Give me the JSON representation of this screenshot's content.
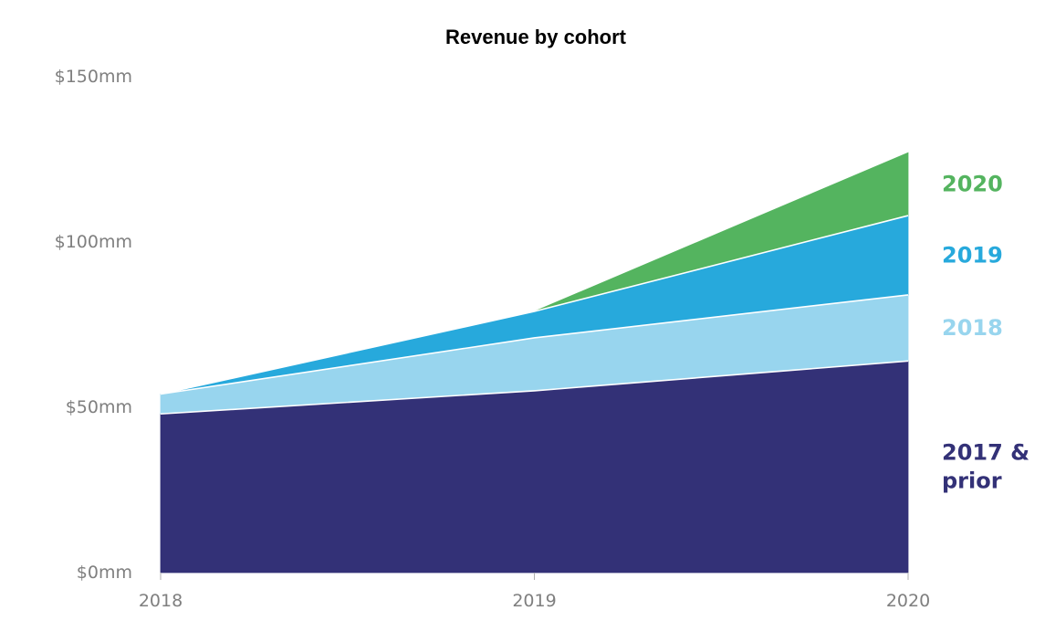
{
  "chart_data": {
    "type": "area",
    "title": "Revenue by cohort",
    "xlabel": "",
    "ylabel": "",
    "x": [
      "2018",
      "2019",
      "2020"
    ],
    "y_ticks": [
      "$0mm",
      "$50mm",
      "$100mm",
      "$150mm"
    ],
    "ylim": [
      0,
      150
    ],
    "stacked": true,
    "grid": false,
    "legend": "right (inline labels at series end)",
    "series": [
      {
        "name": "2017 & prior",
        "label_lines": [
          "2017 &",
          "prior"
        ],
        "color": "#333177",
        "values": [
          48,
          55,
          64
        ]
      },
      {
        "name": "2018",
        "label_lines": [
          "2018"
        ],
        "color": "#98D5EE",
        "values": [
          6,
          16,
          20
        ]
      },
      {
        "name": "2019",
        "label_lines": [
          "2019"
        ],
        "color": "#27A9DC",
        "values": [
          0,
          8,
          24
        ]
      },
      {
        "name": "2020",
        "label_lines": [
          "2020"
        ],
        "color": "#54B45F",
        "values": [
          0,
          0,
          19
        ]
      }
    ]
  }
}
